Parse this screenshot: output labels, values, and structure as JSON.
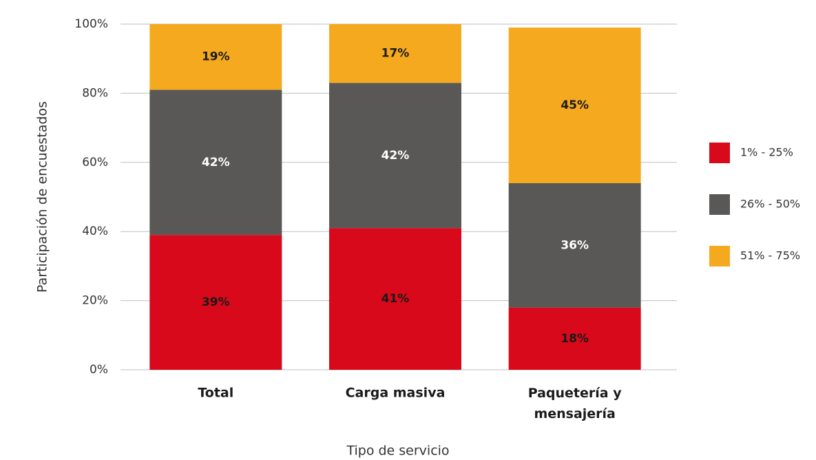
{
  "chart_data": {
    "type": "stacked_bar",
    "xlabel": "Tipo de servicio",
    "ylabel": "Participación de encuestados",
    "categories": [
      "Total",
      "Carga masiva",
      "Paquetería y mensajería"
    ],
    "series": [
      {
        "name": "1% - 25%",
        "color": "#d7091a",
        "label_color": "#1a1a1a",
        "values": [
          39,
          41,
          18
        ],
        "value_labels": [
          "39%",
          "41%",
          "18%"
        ]
      },
      {
        "name": "26% - 50%",
        "color": "#595856",
        "label_color": "#ffffff",
        "values": [
          42,
          42,
          36
        ],
        "value_labels": [
          "42%",
          "42%",
          "36%"
        ]
      },
      {
        "name": "51% - 75%",
        "color": "#f5a91f",
        "label_color": "#1a1a1a",
        "values": [
          19,
          17,
          45
        ],
        "value_labels": [
          "19%",
          "17%",
          "45%"
        ]
      }
    ],
    "ylim": [
      0,
      100
    ],
    "yticks": [
      {
        "value": 0,
        "label": "0%"
      },
      {
        "value": 20,
        "label": "20%"
      },
      {
        "value": 40,
        "label": "40%"
      },
      {
        "value": 60,
        "label": "60%"
      },
      {
        "value": 80,
        "label": "80%"
      },
      {
        "value": 100,
        "label": "100%"
      }
    ],
    "grid": true,
    "legend": "right"
  }
}
